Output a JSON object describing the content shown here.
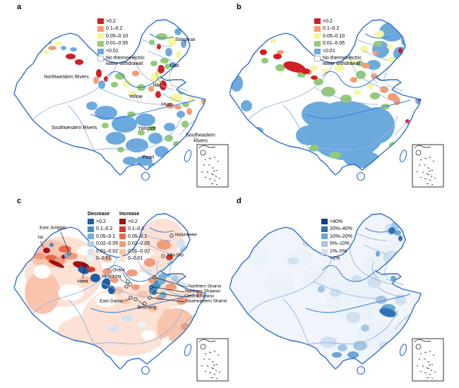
{
  "figure": {
    "background": "#ffffff"
  },
  "panels": {
    "a": {
      "label": "a"
    },
    "b": {
      "label": "b"
    },
    "c": {
      "label": "c"
    },
    "d": {
      "label": "d"
    }
  },
  "withdrawal_legend": {
    "items": [
      {
        "label": ">0.2",
        "color": "#ce2026"
      },
      {
        "label": "0.1–0.2",
        "color": "#f59c6e"
      },
      {
        "label": "0.05–0.10",
        "color": "#f5f6a0"
      },
      {
        "label": "0.01–0.05",
        "color": "#92ca76"
      },
      {
        "label": "<0.01",
        "color": "#6caade"
      },
      {
        "label": "No thermoelectric water withdrawal",
        "color": "#ffffff"
      }
    ]
  },
  "change_legend": {
    "decrease_title": "Decrease",
    "increase_title": "Increase",
    "decrease_items": [
      {
        "label": ">0.2",
        "color": "#1d5fa5"
      },
      {
        "label": "0.1–0.2",
        "color": "#3f8ec5"
      },
      {
        "label": "0.05–0.1",
        "color": "#77b1d6"
      },
      {
        "label": "0.02–0.05",
        "color": "#a9cfe5"
      },
      {
        "label": "0.01–0.02",
        "color": "#d2e4f1"
      },
      {
        "label": "0–0.01",
        "color": "#eaf2f9"
      }
    ],
    "increase_items": [
      {
        "label": ">0.2",
        "color": "#a31019"
      },
      {
        "label": "0.1–0.2",
        "color": "#d13a2c"
      },
      {
        "label": "0.05–0.1",
        "color": "#e56a4c"
      },
      {
        "label": "0.02–0.05",
        "color": "#f29b79"
      },
      {
        "label": "0.01–0.02",
        "color": "#f8c4ab"
      },
      {
        "label": "0–0.01",
        "color": "#fce1d4"
      }
    ]
  },
  "percent_legend": {
    "items": [
      {
        "label": ">40%",
        "color": "#123f8f"
      },
      {
        "label": "20%–40%",
        "color": "#2f72b8"
      },
      {
        "label": "10%–20%",
        "color": "#6ba7d3"
      },
      {
        "label": "5%–10%",
        "color": "#a1c7e2"
      },
      {
        "label": "1%–5%",
        "color": "#cfe0f0"
      },
      {
        "label": "<1%",
        "color": "#ecf2fa"
      }
    ]
  },
  "basin_labels": {
    "northwestern": "Northwestern Rivers",
    "songhua": "Songhua",
    "liao": "Liao",
    "hai": "Hai",
    "yellow": "Yellow",
    "huai": "Huai",
    "yangtze": "Yangtze",
    "southwestern": "Southwestern Rivers",
    "southeastern": "Southeastern Rivers",
    "pearl": "Pearl"
  },
  "coal_base_labels": {
    "east_junggar": "East Junggar",
    "yili": "Yili",
    "hami": "Hami",
    "ordos": "Ordos",
    "ningdong": "Ningdong",
    "east_gansu": "East Gansu",
    "bincheng": "Bincheng",
    "hulunbeier": "Hulunbeier",
    "xilin_gol": "Xilin Gol",
    "northern_shanxi": "Northern Shanxi",
    "northern_shaanxi": "Northern Shaanxi",
    "central_shanxi": "Central Shanxi",
    "southeastern_shanxi": "Southeastern Shanxi"
  },
  "map_colors": {
    "land": "#ffffff",
    "land_d": "#f1f5fb",
    "border": "#2e6ccd",
    "border_light": "#8fb2e8",
    "river": "#3d7de0",
    "inset_marks": "#1a1a1a",
    "annotation_line": "#1a1a1a"
  }
}
